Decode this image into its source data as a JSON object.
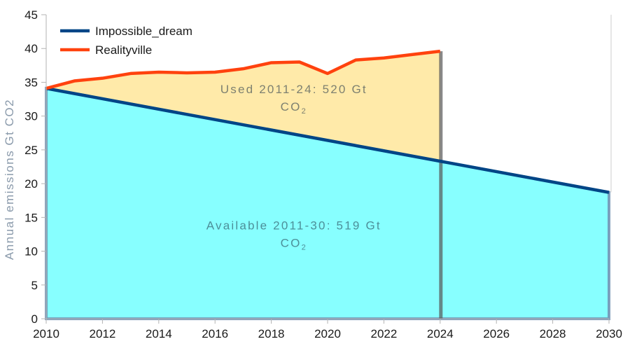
{
  "chart_data": {
    "type": "area",
    "title": "",
    "xlabel": "",
    "ylabel": "Annual emissions Gt CO2",
    "xlim": [
      2010,
      2030
    ],
    "ylim": [
      0,
      45
    ],
    "x_ticks": [
      2010,
      2012,
      2014,
      2016,
      2018,
      2020,
      2022,
      2024,
      2026,
      2028,
      2030
    ],
    "y_ticks": [
      0,
      5,
      10,
      15,
      20,
      25,
      30,
      35,
      40,
      45
    ],
    "grid": false,
    "legend_position": "top-left",
    "series": [
      {
        "name": "Impossible_dream",
        "color": "#004586",
        "fill": "#87ffff",
        "x": [
          2010,
          2030
        ],
        "values": [
          34.1,
          18.7
        ]
      },
      {
        "name": "Realityville",
        "color": "#ff420e",
        "fill": "#ffeaa9",
        "x": [
          2010,
          2011,
          2012,
          2013,
          2014,
          2015,
          2016,
          2017,
          2018,
          2019,
          2020,
          2021,
          2022,
          2023,
          2024
        ],
        "values": [
          34.1,
          35.2,
          35.6,
          36.3,
          36.5,
          36.4,
          36.5,
          37.0,
          37.9,
          38.0,
          36.3,
          38.3,
          38.6,
          39.1,
          39.6
        ]
      }
    ],
    "markers": [
      {
        "name": "cutoff-2024",
        "x": 2024,
        "color": "#555555"
      }
    ],
    "annotations": [
      {
        "name": "used",
        "line1": "Used 2011-24: 520 Gt",
        "line2_main": "CO",
        "line2_sub": "2",
        "x": 2019,
        "y": 33.4
      },
      {
        "name": "available",
        "line1": "Available 2011-30: 519 Gt",
        "line2_main": "CO",
        "line2_sub": "2",
        "x": 2019,
        "y": 13.2
      }
    ]
  }
}
